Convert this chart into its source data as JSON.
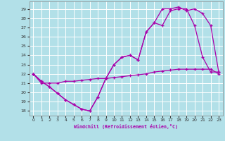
{
  "xlabel": "Windchill (Refroidissement éolien,°C)",
  "background_color": "#b2e0e8",
  "line_color": "#aa00aa",
  "grid_color": "#ffffff",
  "xmin": -0.5,
  "xmax": 23.5,
  "ymin": 17.5,
  "ymax": 29.8,
  "yticks": [
    18,
    19,
    20,
    21,
    22,
    23,
    24,
    25,
    26,
    27,
    28,
    29
  ],
  "xticks": [
    0,
    1,
    2,
    3,
    4,
    5,
    6,
    7,
    8,
    9,
    10,
    11,
    12,
    13,
    14,
    15,
    16,
    17,
    18,
    19,
    20,
    21,
    22,
    23
  ],
  "line1_y": [
    22.0,
    21.2,
    20.6,
    19.9,
    19.2,
    18.7,
    18.2,
    18.0,
    19.5,
    21.5,
    23.0,
    23.8,
    24.0,
    23.5,
    26.5,
    27.5,
    27.2,
    28.8,
    29.0,
    29.0,
    27.2,
    23.8,
    22.2,
    22.2
  ],
  "line2_y": [
    22.0,
    21.2,
    20.6,
    19.9,
    19.2,
    18.7,
    18.2,
    18.0,
    19.5,
    21.5,
    23.0,
    23.8,
    24.0,
    23.5,
    26.5,
    27.5,
    29.0,
    29.0,
    29.2,
    28.8,
    29.0,
    28.5,
    27.2,
    22.2
  ],
  "line3_y": [
    22.0,
    21.0,
    21.0,
    21.0,
    21.2,
    21.2,
    21.3,
    21.4,
    21.5,
    21.5,
    21.6,
    21.7,
    21.8,
    21.9,
    22.0,
    22.2,
    22.3,
    22.4,
    22.5,
    22.5,
    22.5,
    22.5,
    22.5,
    22.0
  ]
}
